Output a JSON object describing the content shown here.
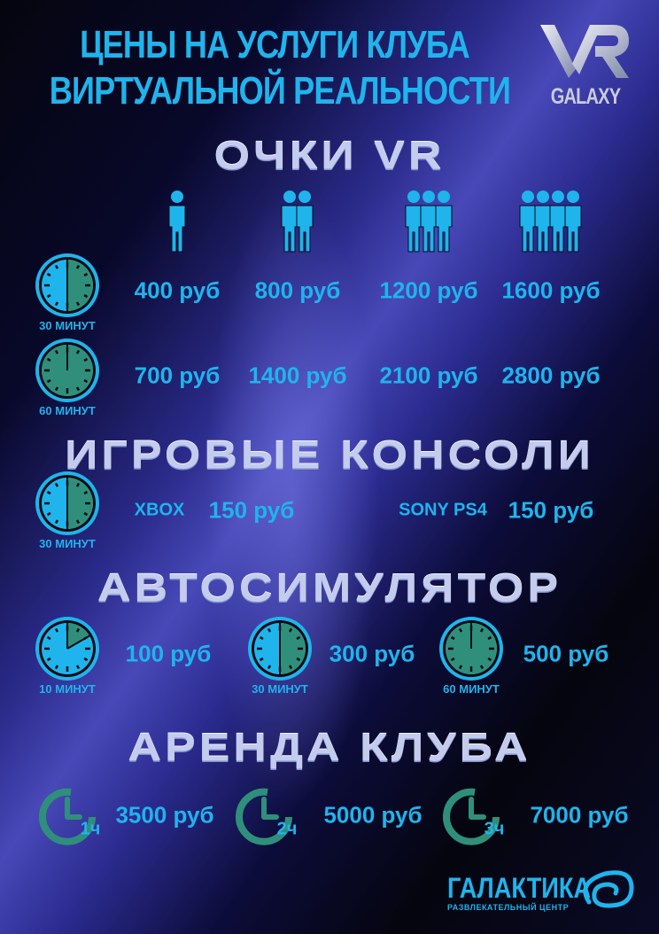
{
  "header": {
    "title_line1": "ЦЕНЫ НА УСЛУГИ КЛУБА",
    "title_line2": "ВИРТУАЛЬНОЙ РЕАЛЬНОСТИ",
    "logo_text": "VR",
    "logo_subtext": "GALAXY"
  },
  "colors": {
    "accent": "#1fb4ec",
    "clock_green": "#2f8f7a",
    "heading": "#c4ccee"
  },
  "vr": {
    "heading": "ОЧКИ VR",
    "people_counts": [
      1,
      2,
      3,
      4
    ],
    "rows": [
      {
        "duration": "30 МИНУТ",
        "fraction": 0.5,
        "prices": [
          "400 руб",
          "800 руб",
          "1200 руб",
          "1600 руб"
        ]
      },
      {
        "duration": "60 МИНУТ",
        "fraction": 1,
        "prices": [
          "700 руб",
          "1400 руб",
          "2100 руб",
          "2800 руб"
        ]
      }
    ]
  },
  "consoles": {
    "heading": "ИГРОВЫЕ КОНСОЛИ",
    "duration": "30 МИНУТ",
    "fraction": 0.5,
    "items": [
      {
        "name": "XBOX",
        "price": "150 руб"
      },
      {
        "name": "SONY PS4",
        "price": "150 руб"
      }
    ]
  },
  "simulator": {
    "heading": "АВТОСИМУЛЯТОР",
    "items": [
      {
        "duration": "10 МИНУТ",
        "fraction": 0.1667,
        "price": "100 руб"
      },
      {
        "duration": "30 МИНУТ",
        "fraction": 0.5,
        "price": "300 руб"
      },
      {
        "duration": "60 МИНУТ",
        "fraction": 1,
        "price": "500 руб"
      }
    ]
  },
  "rental": {
    "heading": "АРЕНДА КЛУБА",
    "items": [
      {
        "hours": "1ч",
        "price": "3500 руб"
      },
      {
        "hours": "2ч",
        "price": "5000 руб"
      },
      {
        "hours": "3ч",
        "price": "7000 руб"
      }
    ]
  },
  "footer": {
    "brand": "ГАЛАКТИКА",
    "tagline": "РАЗВЛЕКАТЕЛЬНЫЙ ЦЕНТР"
  }
}
